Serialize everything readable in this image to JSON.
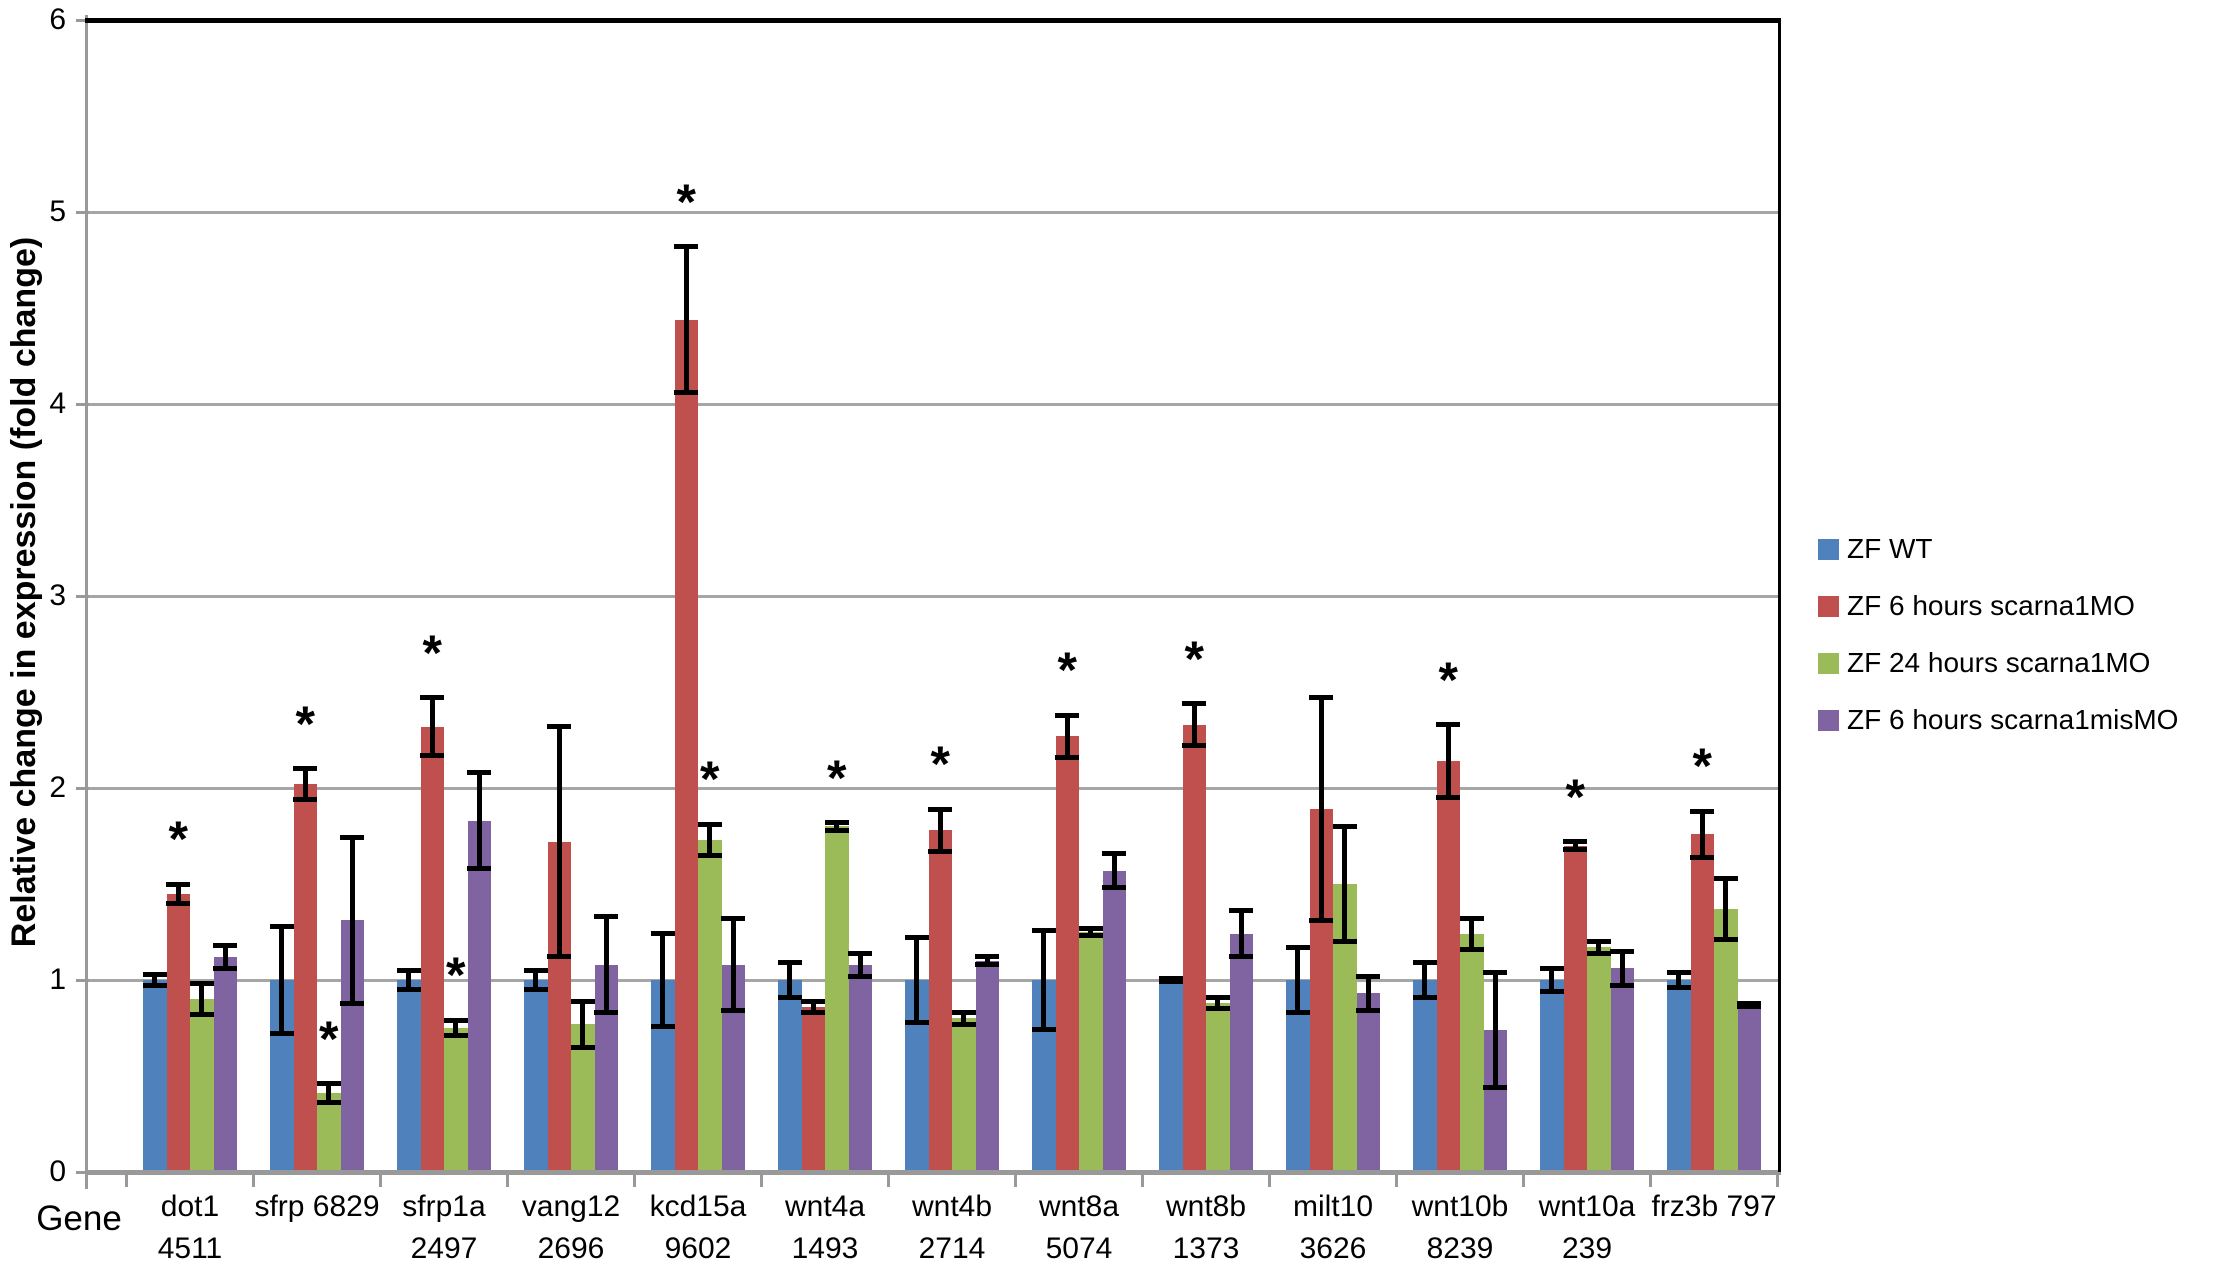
{
  "colors": {
    "background": "#FFFFFF",
    "gridline": "#A6A6A6",
    "axis_line": "#999999",
    "plot_border": "#000000",
    "error_bar": "#000000",
    "significance_marker_color": "#000000",
    "text": "#000000"
  },
  "significance_marker": "*",
  "chart_data": {
    "type": "bar",
    "title": "",
    "ylabel": "Relative change in expression (fold change)",
    "xlabel": "Gene",
    "ylim": [
      0,
      6
    ],
    "yticks": [
      0,
      1,
      2,
      3,
      4,
      5,
      6
    ],
    "grid": true,
    "legend_position": "right-middle",
    "error_bars": true,
    "categories": [
      "dot1\n4511",
      "sfrp 6829",
      "sfrp1a\n2497",
      "vang12\n2696",
      "kcd15a\n9602",
      "wnt4a\n1493",
      "wnt4b\n2714",
      "wnt8a\n5074",
      "wnt8b\n1373",
      "milt10\n3626",
      "wnt10b\n8239",
      "wnt10a\n239",
      "frz3b 797"
    ],
    "series": [
      {
        "name": "ZF WT",
        "color": "#4F81BD",
        "values": [
          1.0,
          1.0,
          1.0,
          1.0,
          1.0,
          1.0,
          1.0,
          1.0,
          1.0,
          1.0,
          1.0,
          1.0,
          1.0
        ],
        "errors": [
          0.03,
          0.28,
          0.05,
          0.05,
          0.24,
          0.09,
          0.22,
          0.26,
          0.01,
          0.17,
          0.09,
          0.06,
          0.04
        ],
        "significant": [
          false,
          false,
          false,
          false,
          false,
          false,
          false,
          false,
          false,
          false,
          false,
          false,
          false
        ]
      },
      {
        "name": "ZF 6 hours scarna1MO",
        "color": "#C0504D",
        "values": [
          1.45,
          2.02,
          2.32,
          1.72,
          4.44,
          0.86,
          1.78,
          2.27,
          2.33,
          1.89,
          2.14,
          1.7,
          1.76
        ],
        "errors": [
          0.05,
          0.08,
          0.15,
          0.6,
          0.38,
          0.03,
          0.11,
          0.11,
          0.11,
          0.58,
          0.19,
          0.02,
          0.12
        ],
        "significant": [
          true,
          true,
          true,
          false,
          true,
          false,
          true,
          true,
          true,
          false,
          true,
          true,
          true
        ]
      },
      {
        "name": "ZF 24 hours scarna1MO",
        "color": "#9BBB59",
        "values": [
          0.9,
          0.41,
          0.75,
          0.77,
          1.73,
          1.8,
          0.8,
          1.25,
          0.88,
          1.5,
          1.24,
          1.17,
          1.37
        ],
        "errors": [
          0.08,
          0.05,
          0.04,
          0.12,
          0.08,
          0.02,
          0.03,
          0.02,
          0.03,
          0.3,
          0.08,
          0.03,
          0.16
        ],
        "significant": [
          false,
          true,
          true,
          false,
          true,
          true,
          false,
          false,
          false,
          false,
          false,
          false,
          false
        ]
      },
      {
        "name": "ZF 6 hours scarna1misMO",
        "color": "#8064A2",
        "values": [
          1.12,
          1.31,
          1.83,
          1.08,
          1.08,
          1.08,
          1.1,
          1.57,
          1.24,
          0.93,
          0.74,
          1.06,
          0.87
        ],
        "errors": [
          0.06,
          0.43,
          0.25,
          0.25,
          0.24,
          0.06,
          0.02,
          0.09,
          0.12,
          0.09,
          0.3,
          0.09,
          0.01
        ],
        "significant": [
          false,
          false,
          false,
          false,
          false,
          false,
          false,
          false,
          false,
          false,
          false,
          false,
          false
        ]
      }
    ]
  }
}
